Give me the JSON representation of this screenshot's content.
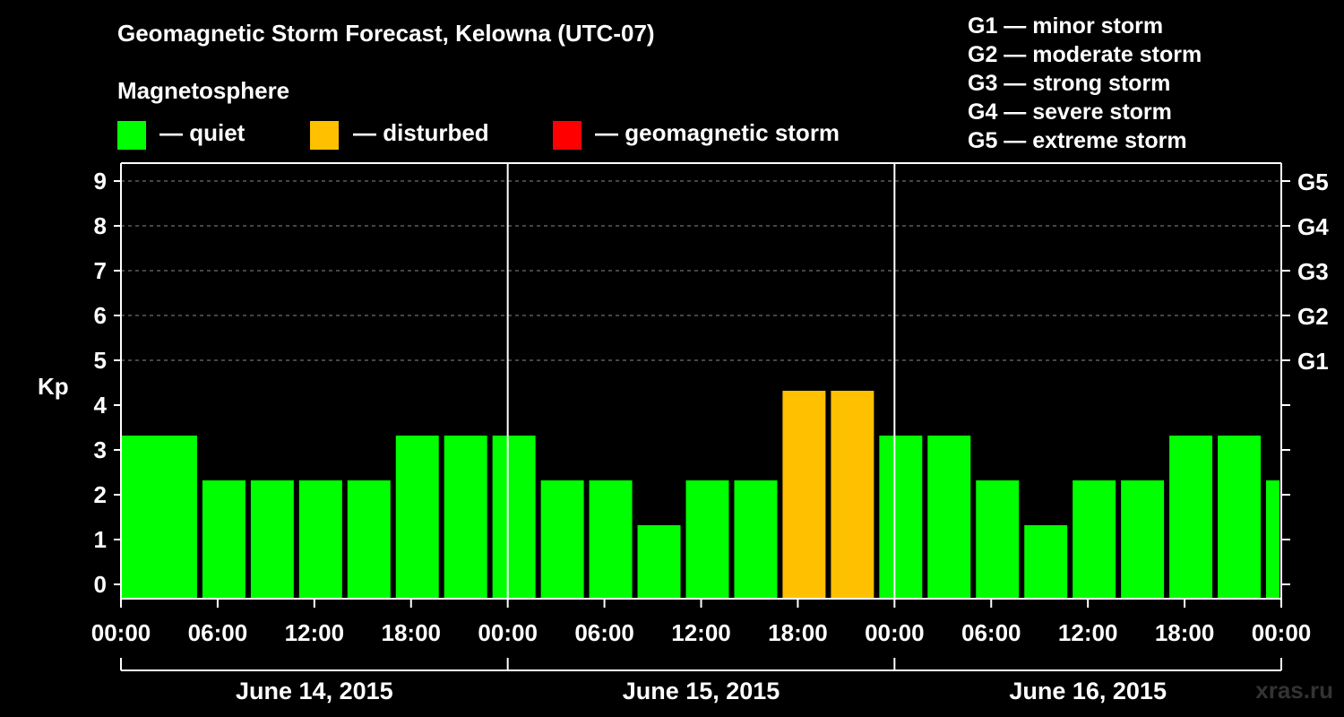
{
  "title": "Geomagnetic Storm Forecast, Kelowna (UTC-07)",
  "subtitle": "Magnetosphere",
  "legend": [
    {
      "label": "— quiet",
      "color": "#00ff00"
    },
    {
      "label": "— disturbed",
      "color": "#ffc000"
    },
    {
      "label": "— geomagnetic storm",
      "color": "#ff0000"
    }
  ],
  "g_scale": [
    "G1 — minor storm",
    "G2 — moderate storm",
    "G3 — strong storm",
    "G4 — severe storm",
    "G5 — extreme storm"
  ],
  "watermark": "xras.ru",
  "chart_data": {
    "type": "bar",
    "ylabel": "Kp",
    "ylim": [
      0,
      9
    ],
    "yticks": [
      "0",
      "1",
      "2",
      "3",
      "4",
      "5",
      "6",
      "7",
      "8",
      "9"
    ],
    "right_ticks": [
      {
        "kp": 5,
        "label": "G1"
      },
      {
        "kp": 6,
        "label": "G2"
      },
      {
        "kp": 7,
        "label": "G3"
      },
      {
        "kp": 8,
        "label": "G4"
      },
      {
        "kp": 9,
        "label": "G5"
      }
    ],
    "xticks": [
      "00:00",
      "06:00",
      "12:00",
      "18:00",
      "00:00",
      "06:00",
      "12:00",
      "18:00",
      "00:00",
      "06:00",
      "12:00",
      "18:00",
      "00:00"
    ],
    "days": [
      "June 14, 2015",
      "June 15, 2015",
      "June 16, 2015"
    ],
    "bar_hours": 3,
    "hours_total": 72,
    "grid": "dashed horizontal at Kp 5–9",
    "colors": {
      "quiet": "#00ff00",
      "disturbed": "#ffc000",
      "storm": "#ff0000"
    },
    "series": [
      {
        "start_hour": 0,
        "kp": 3
      },
      {
        "start_hour": 2,
        "kp": 3
      },
      {
        "start_hour": 5,
        "kp": 2
      },
      {
        "start_hour": 8,
        "kp": 2
      },
      {
        "start_hour": 11,
        "kp": 2
      },
      {
        "start_hour": 14,
        "kp": 2
      },
      {
        "start_hour": 17,
        "kp": 3
      },
      {
        "start_hour": 20,
        "kp": 3
      },
      {
        "start_hour": 23,
        "kp": 3
      },
      {
        "start_hour": 26,
        "kp": 2
      },
      {
        "start_hour": 29,
        "kp": 2
      },
      {
        "start_hour": 32,
        "kp": 1
      },
      {
        "start_hour": 35,
        "kp": 2
      },
      {
        "start_hour": 38,
        "kp": 2
      },
      {
        "start_hour": 41,
        "kp": 4
      },
      {
        "start_hour": 44,
        "kp": 4
      },
      {
        "start_hour": 47,
        "kp": 3
      },
      {
        "start_hour": 50,
        "kp": 3
      },
      {
        "start_hour": 53,
        "kp": 2
      },
      {
        "start_hour": 56,
        "kp": 1
      },
      {
        "start_hour": 59,
        "kp": 2
      },
      {
        "start_hour": 62,
        "kp": 2
      },
      {
        "start_hour": 65,
        "kp": 3
      },
      {
        "start_hour": 68,
        "kp": 3
      },
      {
        "start_hour": 71,
        "kp": 2
      }
    ]
  }
}
